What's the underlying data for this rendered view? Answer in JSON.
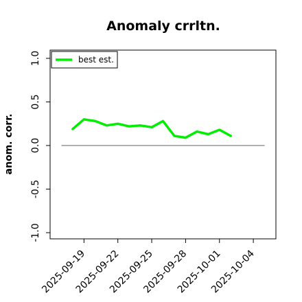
{
  "chart_data": {
    "type": "line",
    "title": "Anomaly crrltn.",
    "xlabel": "",
    "ylabel": "anom. corr.",
    "ylim": [
      -1.0,
      1.0
    ],
    "yticks": [
      "-1.0",
      "-0.5",
      "0.0",
      "0.5",
      "1.0"
    ],
    "ytick_values": [
      -1.0,
      -0.5,
      0.0,
      0.5,
      1.0
    ],
    "xticks": [
      "2025-09-19",
      "2025-09-22",
      "2025-09-25",
      "2025-09-28",
      "2025-10-01",
      "2025-10-04"
    ],
    "xlim": [
      "2025-09-16",
      "2025-10-06"
    ],
    "reference_line": {
      "y": 0.0,
      "color": "#808080",
      "x_from": "2025-09-17",
      "x_to": "2025-10-05"
    },
    "legend": {
      "placement": "top-left",
      "entries": [
        "best est."
      ]
    },
    "grid": false,
    "series": [
      {
        "name": "best est.",
        "color": "#00ee00",
        "x": [
          "2025-09-18",
          "2025-09-19",
          "2025-09-20",
          "2025-09-21",
          "2025-09-22",
          "2025-09-23",
          "2025-09-24",
          "2025-09-25",
          "2025-09-26",
          "2025-09-27",
          "2025-09-28",
          "2025-09-29",
          "2025-09-30",
          "2025-10-01",
          "2025-10-02"
        ],
        "values": [
          0.19,
          0.3,
          0.28,
          0.23,
          0.25,
          0.22,
          0.23,
          0.21,
          0.28,
          0.11,
          0.09,
          0.16,
          0.13,
          0.18,
          0.11
        ]
      }
    ]
  }
}
